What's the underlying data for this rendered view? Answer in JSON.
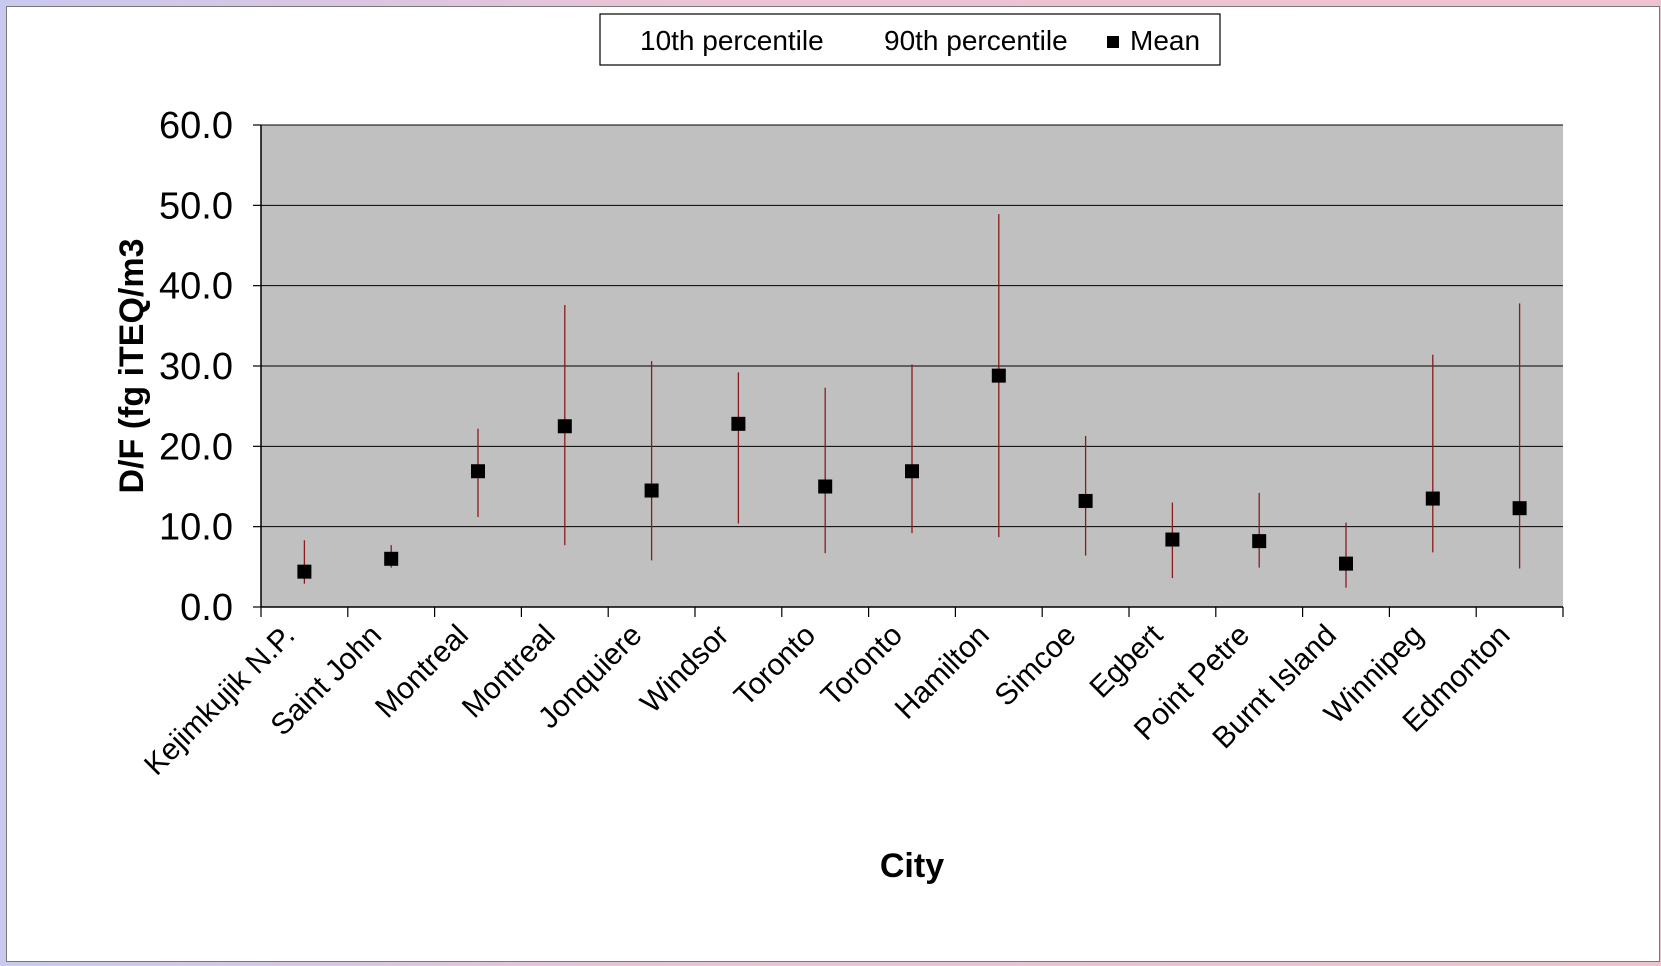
{
  "chart_data": {
    "type": "scatter",
    "xlabel": "City",
    "ylabel": "D/F (fg iTEQ/m3",
    "ylim": [
      0,
      60
    ],
    "yticks": [
      "0.0",
      "10.0",
      "20.0",
      "30.0",
      "40.0",
      "50.0",
      "60.0"
    ],
    "grid": true,
    "legend": {
      "placement": "top-center",
      "entries": [
        "10th percentile",
        "90th percentile",
        "Mean"
      ]
    },
    "categories": [
      "Kejimkujik N.P.",
      "Saint John",
      "Montreal",
      "Montreal",
      "Jonquiere",
      "Windsor",
      "Toronto",
      "Toronto",
      "Hamilton",
      "Simcoe",
      "Egbert",
      "Point Petre",
      "Burnt Island",
      "Winnipeg",
      "Edmonton"
    ],
    "series": [
      {
        "name": "10th percentile",
        "values": [
          2.9,
          4.9,
          11.2,
          7.7,
          5.8,
          10.4,
          6.7,
          9.2,
          8.7,
          6.4,
          3.6,
          4.9,
          2.4,
          6.8,
          4.8
        ]
      },
      {
        "name": "90th percentile",
        "values": [
          8.3,
          7.7,
          22.2,
          37.6,
          30.6,
          29.2,
          27.3,
          30.2,
          48.9,
          21.3,
          13.0,
          14.2,
          10.5,
          31.4,
          37.8
        ]
      },
      {
        "name": "Mean",
        "values": [
          4.4,
          6.0,
          16.9,
          22.5,
          14.5,
          22.8,
          15.0,
          16.9,
          28.8,
          13.2,
          8.4,
          8.2,
          5.4,
          13.5,
          12.3
        ]
      }
    ],
    "colors": {
      "plot_background": "#c0c0c0",
      "range_line": "#8b1a1a",
      "mean_marker": "#000000",
      "gridline": "#000000"
    }
  }
}
